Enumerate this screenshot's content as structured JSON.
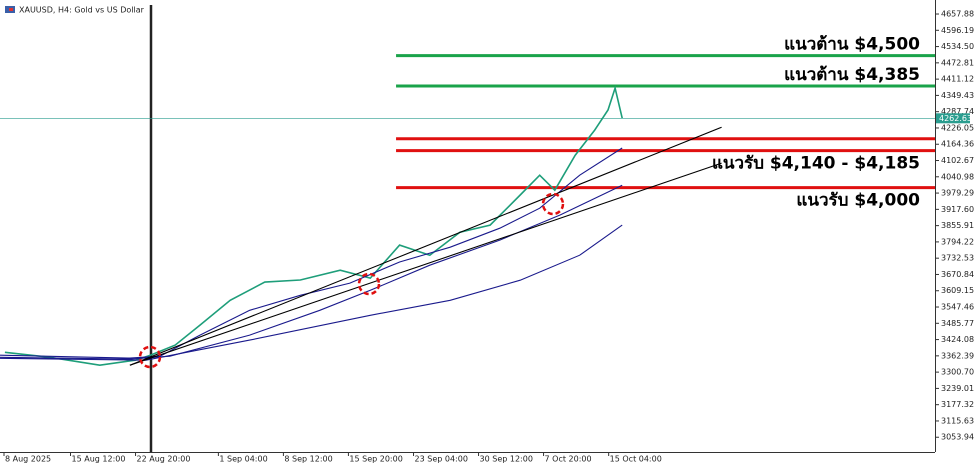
{
  "chart_data": {
    "type": "line",
    "title": "XAUUSD, H4: Gold vs US Dollar",
    "xlim": [
      -0.45,
      104.96
    ],
    "xticks": [
      {
        "value": 0,
        "label": "8 Aug 2025"
      },
      {
        "value": 7.5,
        "label": "15 Aug 12:00"
      },
      {
        "value": 14.83,
        "label": "22 Aug 20:00"
      },
      {
        "value": 24.17,
        "label": "1 Sep 04:00"
      },
      {
        "value": 31.5,
        "label": "8 Sep 12:00"
      },
      {
        "value": 38.83,
        "label": "15 Sep 20:00"
      },
      {
        "value": 46.17,
        "label": "23 Sep 04:00"
      },
      {
        "value": 53.5,
        "label": "30 Sep 12:00"
      },
      {
        "value": 60.83,
        "label": "7 Oct 20:00"
      },
      {
        "value": 68.17,
        "label": "15 Oct 04:00"
      }
    ],
    "ylim": [
      2998,
      4711
    ],
    "yticks": [
      4657.88,
      4596.19,
      {
        "value": 4534.5,
        "label": "4534.50"
      },
      4472.81,
      4411.12,
      4349.43,
      4287.74,
      4226.05,
      4164.36,
      4102.67,
      4040.98,
      3979.29,
      {
        "value": 3917.6,
        "label": "3917.60"
      },
      3855.91,
      3794.22,
      3732.53,
      3670.84,
      3609.15,
      3547.46,
      3485.77,
      3424.08,
      3362.39,
      {
        "value": 3300.7,
        "label": "3300.70"
      },
      3239.01,
      3177.32,
      3115.63,
      3053.94
    ],
    "current_price": 4262.63,
    "current_color": "#2a9d8f",
    "series": [
      {
        "color": "#1e9e7a",
        "width": 1.6,
        "x": [
          0.1,
          5.2,
          10.8,
          14.8,
          16.5,
          19.3,
          22.1,
          25.5,
          29.4,
          33.4,
          37.9,
          41.3,
          44.6,
          48.0,
          51.4,
          54.8,
          58.2,
          60.4,
          62.1,
          64.4,
          66.6,
          68.1,
          68.9,
          69.7
        ],
        "values": [
          3376,
          3357,
          3327,
          3346,
          3365,
          3403,
          3479,
          3573,
          3642,
          3650,
          3687,
          3657,
          3782,
          3744,
          3831,
          3858,
          3972,
          4047,
          3990,
          4123,
          4218,
          4294,
          4377,
          4263
        ]
      },
      {
        "color": "#1a1a8c",
        "width": 1.1,
        "x": [
          -0.45,
          14.2,
          17.6,
          22.1,
          27.7,
          33.4,
          39.0,
          44.6,
          50.3,
          55.9,
          60.4,
          64.9,
          69.7
        ],
        "values": [
          3365,
          3354,
          3361,
          3441,
          3535,
          3592,
          3638,
          3718,
          3774,
          3846,
          3922,
          4047,
          4150
        ]
      },
      {
        "color": "#1a1a8c",
        "width": 1.1,
        "x": [
          -0.45,
          14.2,
          18.7,
          27.7,
          35.6,
          41.3,
          48.0,
          55.9,
          62.7,
          69.7
        ],
        "values": [
          3357,
          3350,
          3361,
          3441,
          3535,
          3611,
          3706,
          3801,
          3896,
          4009
        ]
      },
      {
        "color": "#1a1a8c",
        "width": 1.1,
        "x": [
          -0.45,
          16.0,
          27.7,
          41.3,
          50.3,
          58.2,
          64.9,
          69.7
        ],
        "values": [
          3353,
          3346,
          3422,
          3516,
          3573,
          3649,
          3744,
          3858
        ]
      },
      {
        "color": "#000000",
        "width": 1.1,
        "x": [
          14.2,
          80.9
        ],
        "values": [
          3327,
          4229
        ]
      },
      {
        "color": "#000000",
        "width": 1.1,
        "x": [
          14.2,
          80.9
        ],
        "values": [
          3327,
          4093
        ]
      }
    ],
    "levels": [
      {
        "value": 4500,
        "color": "#1aa34a",
        "label": "แนวต้าน $4,500"
      },
      {
        "value": 4385,
        "color": "#1aa34a",
        "label": "แนวต้าน $4,385"
      },
      {
        "value": 4185,
        "color": "#e01010"
      },
      {
        "value": 4140,
        "color": "#e01010",
        "label": "แนวรับ $4,140 - $4,185"
      },
      {
        "value": 4000,
        "color": "#e01010",
        "label": "แนวรับ $4,000"
      }
    ]
  }
}
